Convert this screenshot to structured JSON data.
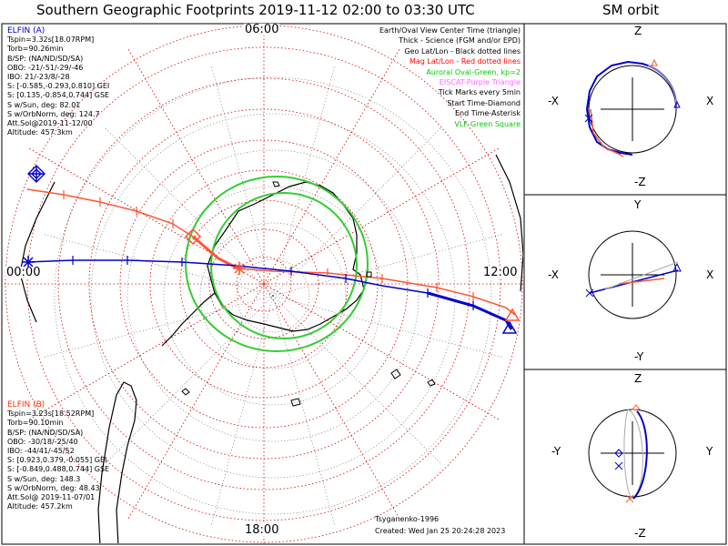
{
  "title": "Southern Geographic Footprints 2019-11-12 02:00 to 03:30 UTC",
  "orbit_title": "SM orbit",
  "elfin_a": {
    "name": "ELFIN (A)",
    "color": "#0000cc",
    "lines": [
      "Tspin=3.32s[18.07RPM]",
      "Torb=90.26min",
      "B/SP: (NA/ND/SD/SA)",
      "OBO: -21/-51/-29/-46",
      "IBO: 21/-23/8/-28",
      "S: [-0.585,-0.293,0.810] GEI",
      "S: [0.135,-0.854,0.744] GSE",
      "S w/Sun, deg: 82.01",
      "S w/OrbNorm, deg: 124.7",
      "Att.Sol@2019-11-12/00",
      "Altitude: 457.3km"
    ]
  },
  "elfin_b": {
    "name": "ELFIN (B)",
    "color": "#ff3300",
    "lines": [
      "Tspin=3.23s[18.52RPM]",
      "Torb=90.10min",
      "B/SP: (NA/ND/SD/SA)",
      "OBO: -30/18/-25/40",
      "IBO: -44/41/-45/52",
      "S: [0.923,0.379,-0.055] GEI",
      "S: [-0.849,0.488,0.744] GSE",
      "S w/Sun, deg: 148.3",
      "S w/OrbNorm, deg: 48.43",
      "Att.Sol@ 2019-11-07/01",
      "Altitude: 457.2km"
    ]
  },
  "legend": [
    {
      "text": "Earth/Oval View Center Time (triangle)",
      "color": "#000000"
    },
    {
      "text": "Thick - Science (FGM and/or EPD)",
      "color": "#000000"
    },
    {
      "text": "Geo Lat/Lon - Black dotted lines",
      "color": "#000000"
    },
    {
      "text": "Mag Lat/Lon - Red dotted lines",
      "color": "#ff0000"
    },
    {
      "text": "Auroral Oval-Green, kp=2",
      "color": "#00cc00"
    },
    {
      "text": "EISCAT-Purple Triangle",
      "color": "#ff66ff"
    },
    {
      "text": "Tick Marks every 5min",
      "color": "#000000"
    },
    {
      "text": "Start Time-Diamond",
      "color": "#000000"
    },
    {
      "text": "End Time-Asterisk",
      "color": "#000000"
    },
    {
      "text": "VLF-Green Square",
      "color": "#00cc00"
    }
  ],
  "hour_labels": {
    "top": "06:00",
    "left": "00:00",
    "right": "12:00",
    "bottom": "18:00"
  },
  "credit": "Tsyganenko-1996",
  "created": "Created: Wed Jan 25 20:24:28 2023",
  "orbit_panels": [
    {
      "top": "Z",
      "bottom": "-Z",
      "left": "-X",
      "right": "X"
    },
    {
      "top": "Y",
      "bottom": "-Y",
      "left": "-X",
      "right": "X"
    },
    {
      "top": "Z",
      "bottom": "-Z",
      "left": "-Y",
      "right": "Y"
    }
  ],
  "colors": {
    "elfin_a": "#0000cc",
    "elfin_b": "#ff3300",
    "oval": "#33cc33",
    "maggrid": "#cc0000"
  }
}
